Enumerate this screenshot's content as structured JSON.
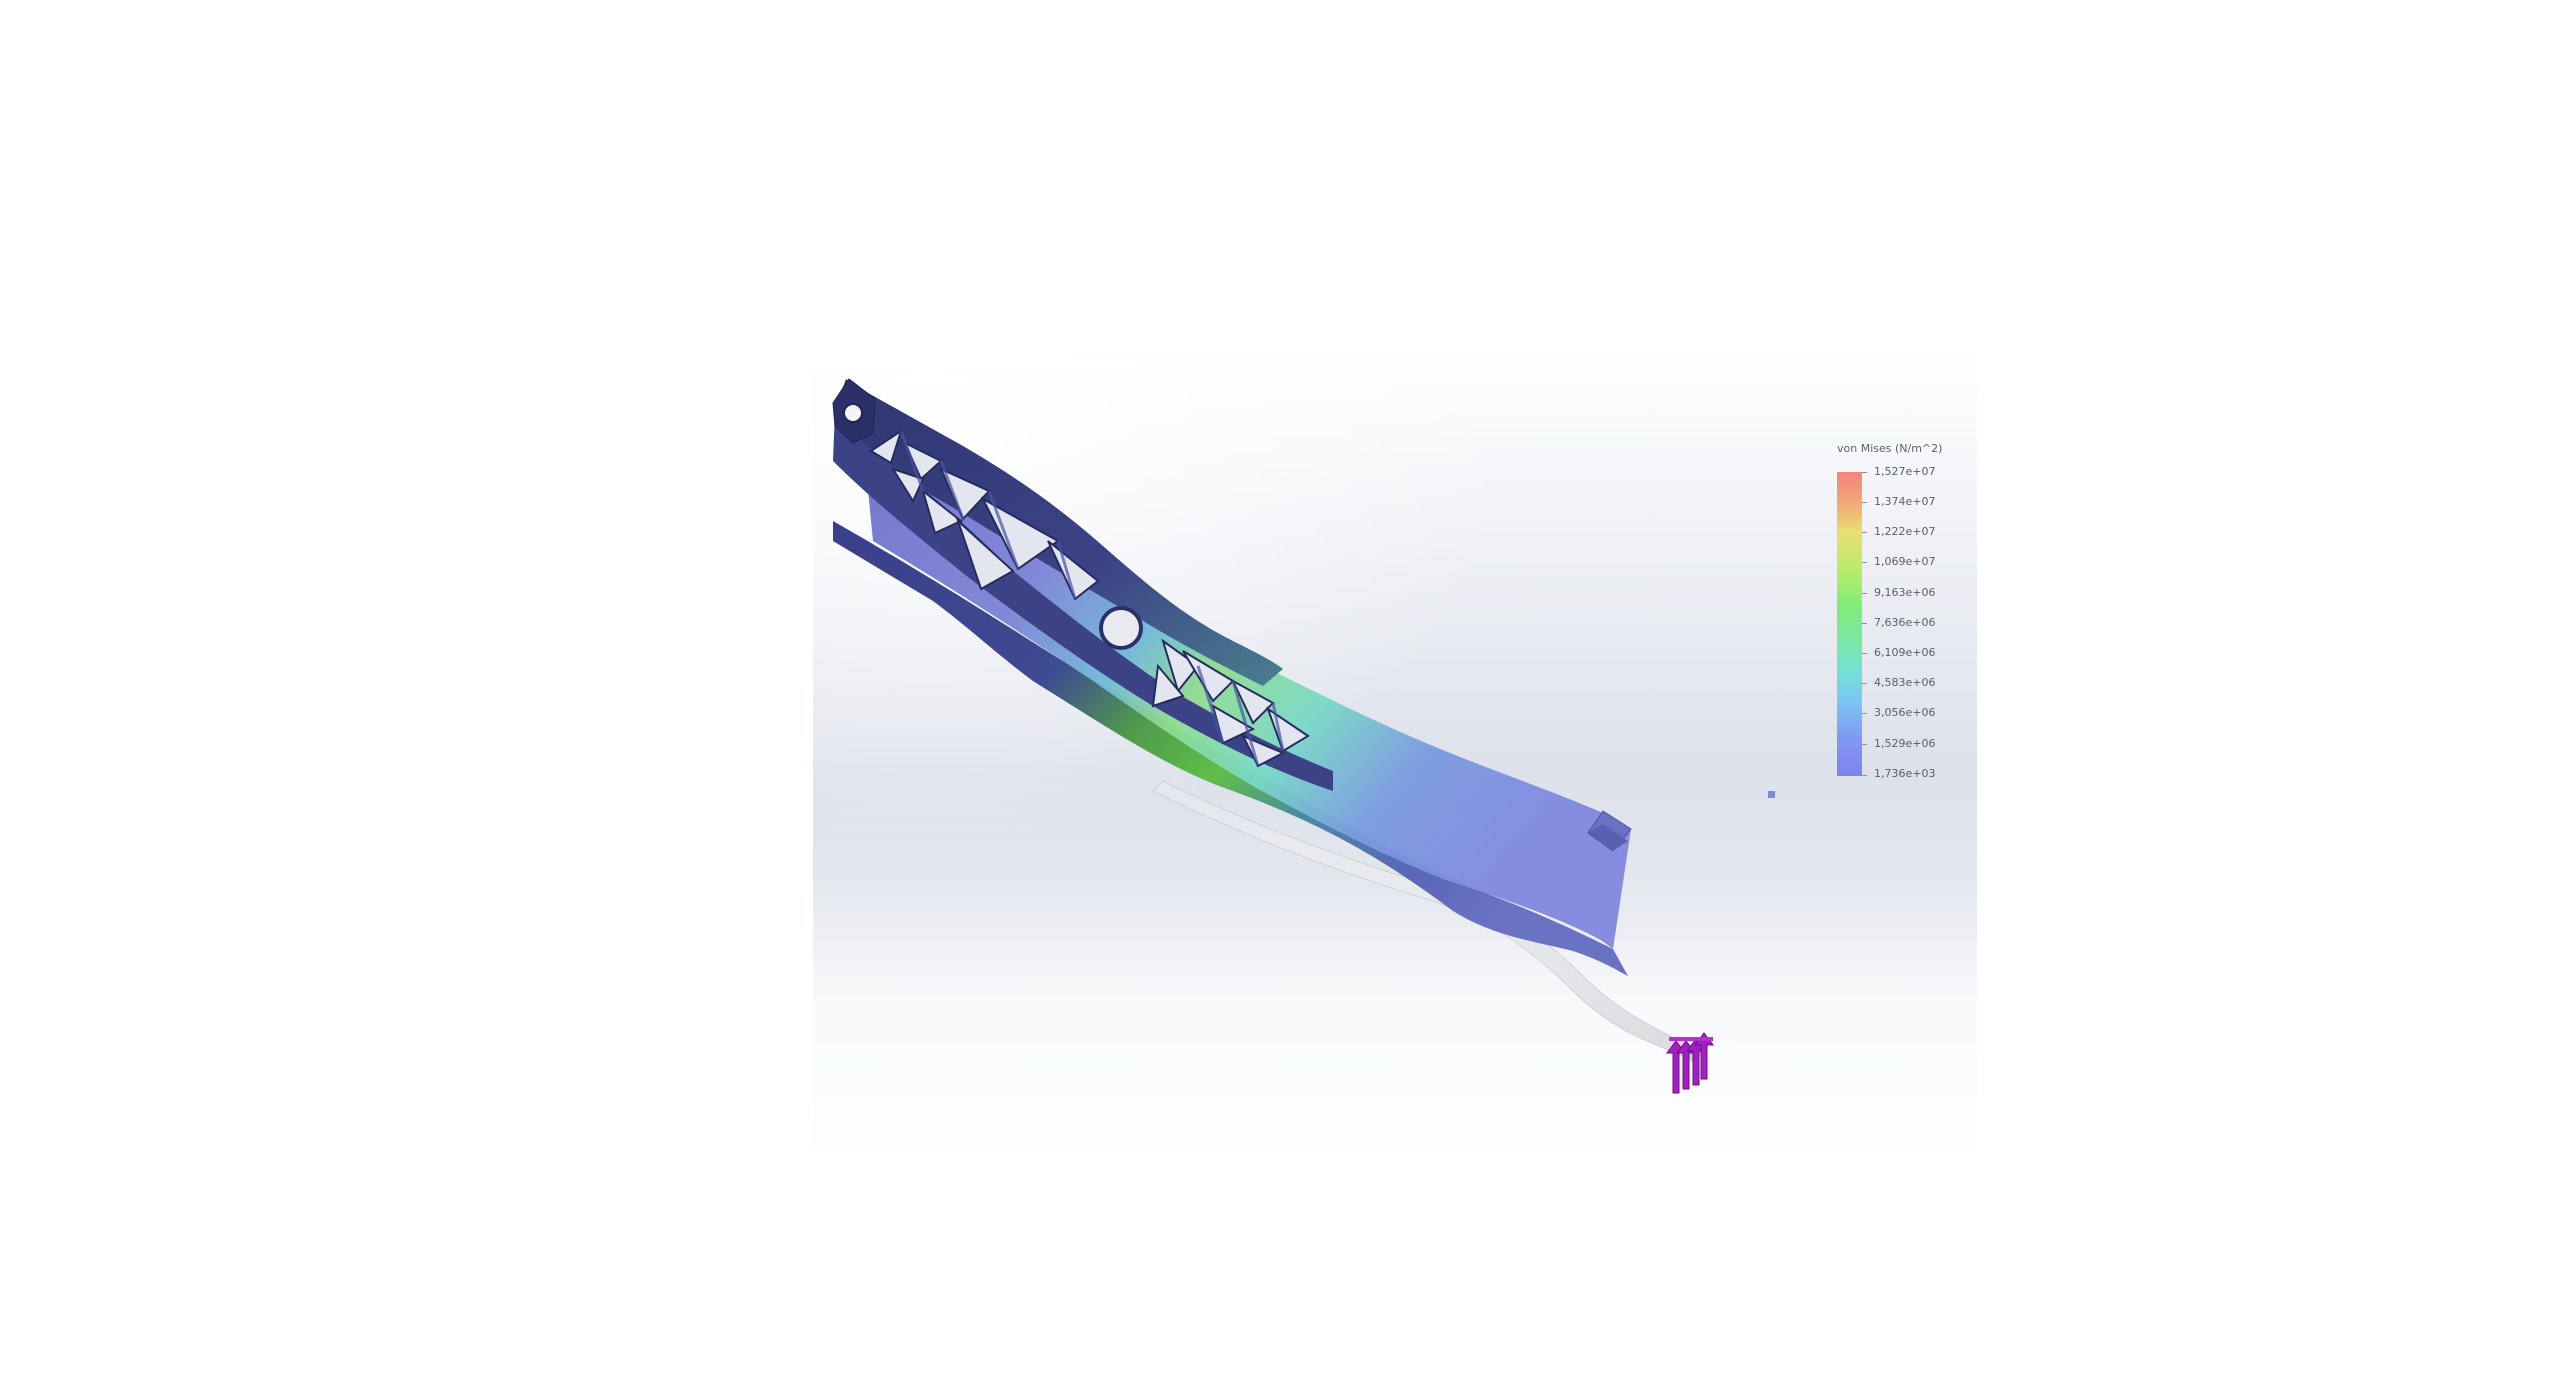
{
  "legend": {
    "title": "von Mises (N/m^2)",
    "labels": [
      "1,527e+07",
      "1,374e+07",
      "1,222e+07",
      "1,069e+07",
      "9,163e+06",
      "7,636e+06",
      "6,109e+06",
      "4,583e+06",
      "3,056e+06",
      "1,529e+06",
      "1,736e+03"
    ],
    "colors": {
      "max": "#f48282",
      "high": "#e8e070",
      "mid": "#82ec7a",
      "low_mid": "#74e0d8",
      "min": "#7f82ef"
    }
  },
  "model": {
    "part_color": "#4f57a6",
    "part_dark": "#2f3670",
    "stress_green": "#6fcf4a",
    "undeformed_ghost": "#e9eaec",
    "load_arrow_color": "#a020c0",
    "load_arrow_icon": "force-arrow-icon"
  },
  "probe": {
    "icon": "probe-marker-icon",
    "color": "#8088d8"
  }
}
